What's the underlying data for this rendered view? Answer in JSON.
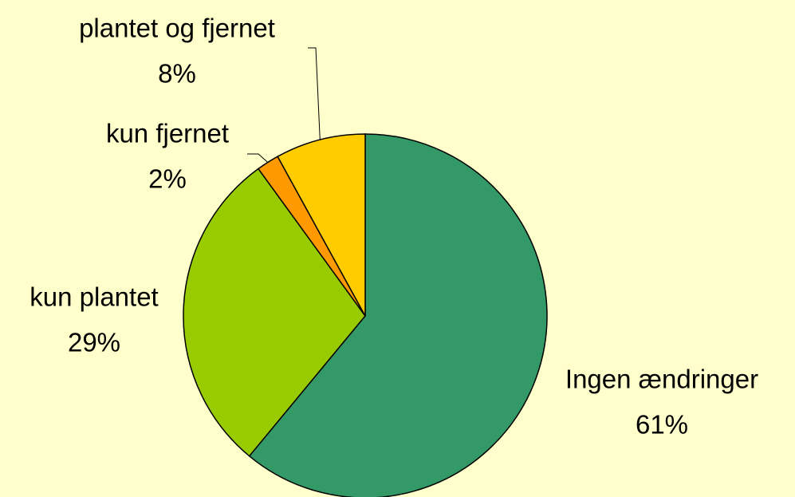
{
  "chart_data": {
    "type": "pie",
    "categories": [
      "Ingen ændringer",
      "kun plantet",
      "kun fjernet",
      "plantet og fjernet"
    ],
    "values": [
      61,
      29,
      2,
      8
    ],
    "value_labels": [
      "61%",
      "29%",
      "2%",
      "8%"
    ],
    "colors": [
      "#339966",
      "#99cc00",
      "#ff9900",
      "#ffcc00"
    ]
  }
}
